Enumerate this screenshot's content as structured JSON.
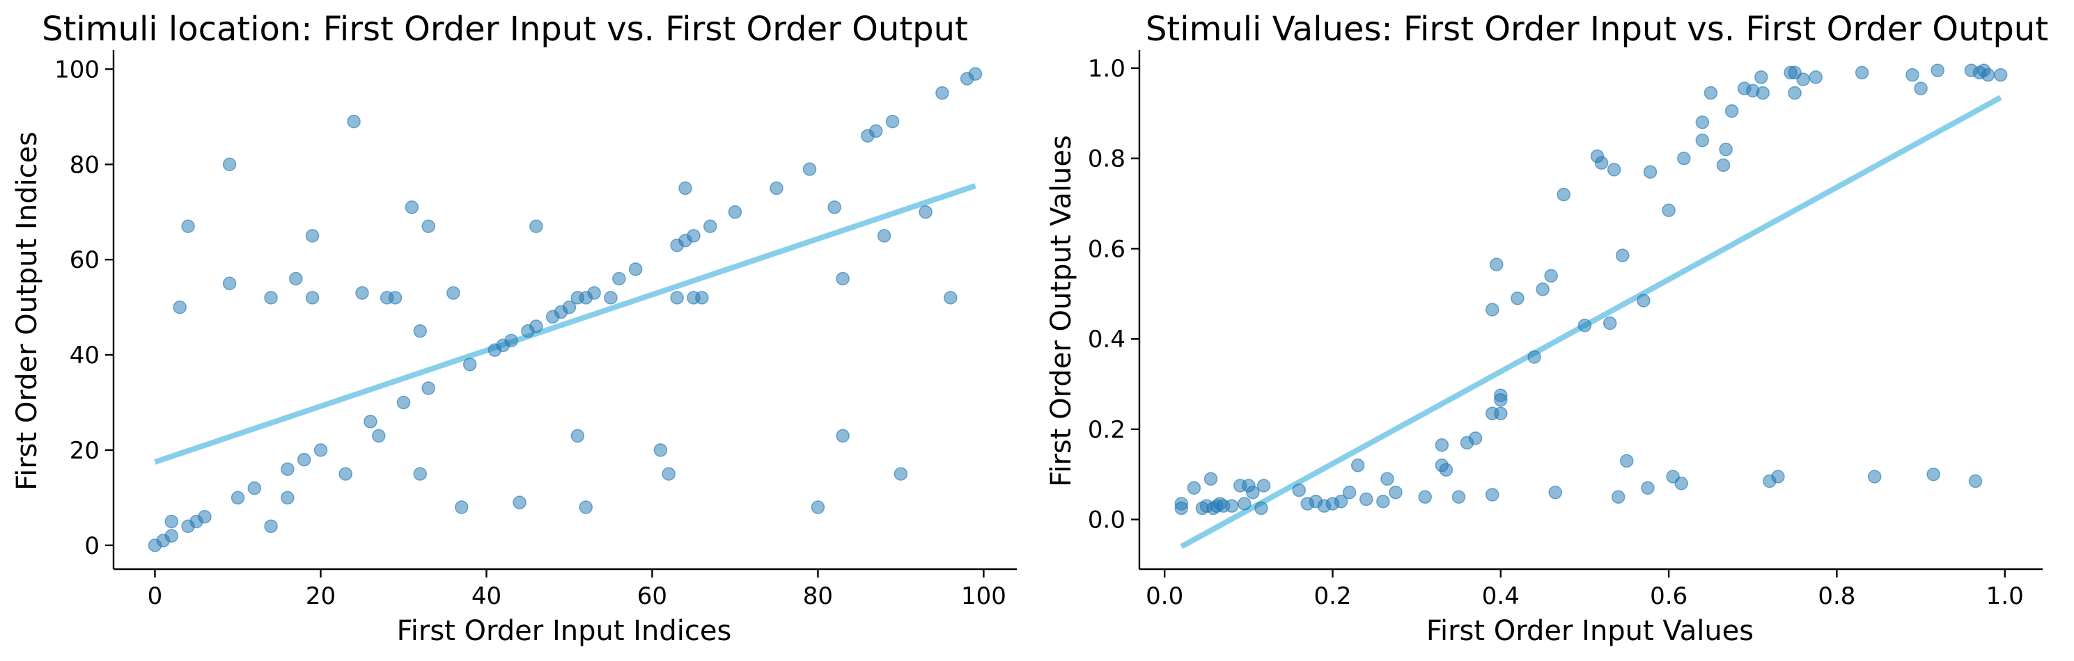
{
  "chart_data": [
    {
      "type": "scatter",
      "title": "Stimuli location: First Order Input vs. First Order Output",
      "xlabel": "First Order Input Indices",
      "ylabel": "First Order Output Indices",
      "xlim": [
        -5,
        104
      ],
      "ylim": [
        -5,
        104
      ],
      "xticks": [
        0,
        20,
        40,
        60,
        80,
        100
      ],
      "yticks": [
        0,
        20,
        40,
        60,
        80,
        100
      ],
      "grid": false,
      "point_color": "#1f77b4",
      "fit_color": "#87ceeb",
      "fit_line": {
        "x": [
          0,
          99
        ],
        "y": [
          17.5,
          75.5
        ]
      },
      "points": [
        [
          0,
          0
        ],
        [
          1,
          1
        ],
        [
          2,
          2
        ],
        [
          2,
          5
        ],
        [
          3,
          50
        ],
        [
          4,
          4
        ],
        [
          4,
          67
        ],
        [
          5,
          5
        ],
        [
          6,
          6
        ],
        [
          9,
          55
        ],
        [
          9,
          80
        ],
        [
          10,
          10
        ],
        [
          12,
          12
        ],
        [
          14,
          4
        ],
        [
          14,
          52
        ],
        [
          16,
          10
        ],
        [
          16,
          16
        ],
        [
          17,
          56
        ],
        [
          18,
          18
        ],
        [
          19,
          52
        ],
        [
          19,
          65
        ],
        [
          20,
          20
        ],
        [
          23,
          15
        ],
        [
          24,
          89
        ],
        [
          25,
          53
        ],
        [
          26,
          26
        ],
        [
          27,
          23
        ],
        [
          28,
          52
        ],
        [
          29,
          52
        ],
        [
          30,
          30
        ],
        [
          31,
          71
        ],
        [
          32,
          15
        ],
        [
          32,
          45
        ],
        [
          33,
          33
        ],
        [
          33,
          67
        ],
        [
          36,
          53
        ],
        [
          37,
          8
        ],
        [
          38,
          38
        ],
        [
          41,
          41
        ],
        [
          42,
          42
        ],
        [
          43,
          43
        ],
        [
          44,
          9
        ],
        [
          45,
          45
        ],
        [
          46,
          46
        ],
        [
          46,
          67
        ],
        [
          48,
          48
        ],
        [
          49,
          49
        ],
        [
          50,
          50
        ],
        [
          51,
          23
        ],
        [
          51,
          52
        ],
        [
          52,
          8
        ],
        [
          52,
          52
        ],
        [
          53,
          53
        ],
        [
          55,
          52
        ],
        [
          56,
          56
        ],
        [
          58,
          58
        ],
        [
          61,
          20
        ],
        [
          62,
          15
        ],
        [
          63,
          52
        ],
        [
          63,
          63
        ],
        [
          64,
          64
        ],
        [
          64,
          75
        ],
        [
          65,
          52
        ],
        [
          65,
          65
        ],
        [
          66,
          52
        ],
        [
          67,
          67
        ],
        [
          70,
          70
        ],
        [
          75,
          75
        ],
        [
          79,
          79
        ],
        [
          80,
          8
        ],
        [
          82,
          71
        ],
        [
          83,
          23
        ],
        [
          83,
          56
        ],
        [
          86,
          86
        ],
        [
          87,
          87
        ],
        [
          88,
          65
        ],
        [
          89,
          89
        ],
        [
          90,
          15
        ],
        [
          93,
          70
        ],
        [
          95,
          95
        ],
        [
          96,
          52
        ],
        [
          98,
          98
        ],
        [
          99,
          99
        ]
      ]
    },
    {
      "type": "scatter",
      "title": "Stimuli Values: First Order Input vs. First Order Output",
      "xlabel": "First Order Input Values",
      "ylabel": "First Order Output Values",
      "xlim": [
        -0.03,
        1.045
      ],
      "ylim": [
        -0.11,
        1.04
      ],
      "xticks": [
        0.0,
        0.2,
        0.4,
        0.6,
        0.8,
        1.0
      ],
      "yticks": [
        0.0,
        0.2,
        0.4,
        0.6,
        0.8,
        1.0
      ],
      "grid": false,
      "point_color": "#1f77b4",
      "fit_color": "#87ceeb",
      "fit_line": {
        "x": [
          0.02,
          0.995
        ],
        "y": [
          -0.06,
          0.935
        ]
      },
      "points": [
        [
          0.02,
          0.025
        ],
        [
          0.02,
          0.035
        ],
        [
          0.035,
          0.07
        ],
        [
          0.045,
          0.025
        ],
        [
          0.05,
          0.03
        ],
        [
          0.055,
          0.09
        ],
        [
          0.058,
          0.025
        ],
        [
          0.062,
          0.03
        ],
        [
          0.066,
          0.035
        ],
        [
          0.07,
          0.03
        ],
        [
          0.08,
          0.03
        ],
        [
          0.09,
          0.075
        ],
        [
          0.095,
          0.035
        ],
        [
          0.1,
          0.075
        ],
        [
          0.105,
          0.06
        ],
        [
          0.115,
          0.025
        ],
        [
          0.118,
          0.075
        ],
        [
          0.16,
          0.065
        ],
        [
          0.17,
          0.035
        ],
        [
          0.18,
          0.04
        ],
        [
          0.19,
          0.03
        ],
        [
          0.2,
          0.035
        ],
        [
          0.21,
          0.04
        ],
        [
          0.22,
          0.06
        ],
        [
          0.23,
          0.12
        ],
        [
          0.24,
          0.045
        ],
        [
          0.26,
          0.04
        ],
        [
          0.265,
          0.09
        ],
        [
          0.275,
          0.06
        ],
        [
          0.31,
          0.05
        ],
        [
          0.33,
          0.12
        ],
        [
          0.33,
          0.165
        ],
        [
          0.335,
          0.11
        ],
        [
          0.35,
          0.05
        ],
        [
          0.36,
          0.17
        ],
        [
          0.37,
          0.18
        ],
        [
          0.39,
          0.235
        ],
        [
          0.39,
          0.055
        ],
        [
          0.39,
          0.465
        ],
        [
          0.395,
          0.565
        ],
        [
          0.4,
          0.235
        ],
        [
          0.4,
          0.275
        ],
        [
          0.4,
          0.265
        ],
        [
          0.42,
          0.49
        ],
        [
          0.44,
          0.36
        ],
        [
          0.45,
          0.51
        ],
        [
          0.46,
          0.54
        ],
        [
          0.465,
          0.06
        ],
        [
          0.475,
          0.72
        ],
        [
          0.5,
          0.43
        ],
        [
          0.515,
          0.805
        ],
        [
          0.52,
          0.79
        ],
        [
          0.53,
          0.435
        ],
        [
          0.535,
          0.775
        ],
        [
          0.54,
          0.05
        ],
        [
          0.545,
          0.585
        ],
        [
          0.55,
          0.13
        ],
        [
          0.57,
          0.485
        ],
        [
          0.575,
          0.07
        ],
        [
          0.578,
          0.77
        ],
        [
          0.6,
          0.685
        ],
        [
          0.605,
          0.095
        ],
        [
          0.615,
          0.08
        ],
        [
          0.618,
          0.8
        ],
        [
          0.64,
          0.88
        ],
        [
          0.64,
          0.84
        ],
        [
          0.65,
          0.945
        ],
        [
          0.665,
          0.785
        ],
        [
          0.668,
          0.82
        ],
        [
          0.675,
          0.905
        ],
        [
          0.69,
          0.955
        ],
        [
          0.7,
          0.95
        ],
        [
          0.71,
          0.98
        ],
        [
          0.712,
          0.945
        ],
        [
          0.72,
          0.085
        ],
        [
          0.73,
          0.095
        ],
        [
          0.745,
          0.99
        ],
        [
          0.75,
          0.99
        ],
        [
          0.75,
          0.945
        ],
        [
          0.76,
          0.975
        ],
        [
          0.775,
          0.98
        ],
        [
          0.83,
          0.99
        ],
        [
          0.845,
          0.095
        ],
        [
          0.89,
          0.985
        ],
        [
          0.9,
          0.955
        ],
        [
          0.915,
          0.1
        ],
        [
          0.92,
          0.995
        ],
        [
          0.96,
          0.995
        ],
        [
          0.965,
          0.085
        ],
        [
          0.97,
          0.99
        ],
        [
          0.975,
          0.995
        ],
        [
          0.98,
          0.985
        ],
        [
          0.995,
          0.985
        ]
      ]
    }
  ]
}
